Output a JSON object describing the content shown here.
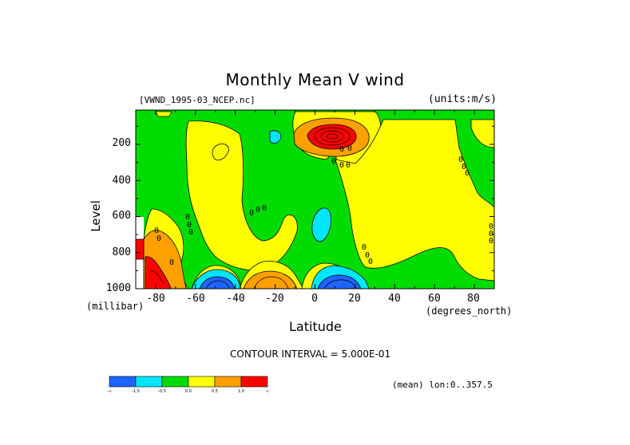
{
  "page": {
    "title": "Monthly Mean V wind",
    "file_label": "[VWND_1995-03_NCEP.nc]",
    "units_label": "(units:m/s)",
    "y_axis_label": "Level",
    "y_axis_units": "(millibar)",
    "x_axis_label": "Latitude",
    "x_axis_units": "(degrees_north)",
    "contour_interval": "CONTOUR INTERVAL = 5.000E-01",
    "mean_label": "(mean) lon:0..357.5"
  },
  "chart_data": {
    "type": "heatmap",
    "title": "Monthly Mean V wind",
    "xlabel": "Latitude",
    "ylabel": "Level",
    "xlim": [
      -90,
      90
    ],
    "ylim": [
      1000,
      10
    ],
    "x_ticks": [
      "-80",
      "-60",
      "-40",
      "-20",
      "0",
      "20",
      "40",
      "60",
      "80"
    ],
    "x_tick_values": [
      -80,
      -60,
      -40,
      -20,
      0,
      20,
      40,
      60,
      80
    ],
    "y_ticks": [
      "200",
      "400",
      "600",
      "800",
      "1000"
    ],
    "y_tick_values": [
      200,
      400,
      600,
      800,
      1000
    ],
    "colorbar": {
      "colors": [
        "#1e64ff",
        "#00e6ff",
        "#00dc00",
        "#ffff00",
        "#ffa000",
        "#ff0000"
      ],
      "labels": [
        "-∞",
        "-1.5",
        "-0.5",
        "0.0",
        "0.5",
        "1.0",
        "∞"
      ]
    },
    "regions": [
      {
        "level": "negative-strong",
        "lat": -50,
        "lev": 975,
        "value": -1.5
      },
      {
        "level": "negative",
        "lat": 12,
        "lev": 940,
        "value": -1.0
      },
      {
        "level": "negative",
        "lat": 8,
        "lev": 640,
        "value": -0.5
      },
      {
        "level": "negative",
        "lat": -20,
        "lev": 170,
        "value": -0.5
      },
      {
        "level": "positive-strong",
        "lat": 10,
        "lev": 160,
        "value": 2.0
      },
      {
        "level": "positive-strong",
        "lat": -82,
        "lev": 950,
        "value": 1.5
      },
      {
        "level": "positive",
        "lat": -25,
        "lev": 970,
        "value": 1.0
      },
      {
        "level": "positive",
        "lat": -38,
        "lev": 450,
        "value": 0.0
      },
      {
        "level": "positive",
        "lat": 50,
        "lev": 700,
        "value": 0.0
      }
    ]
  },
  "annotations": {
    "zero_labels": [
      "0",
      "0",
      "0",
      "0"
    ]
  }
}
